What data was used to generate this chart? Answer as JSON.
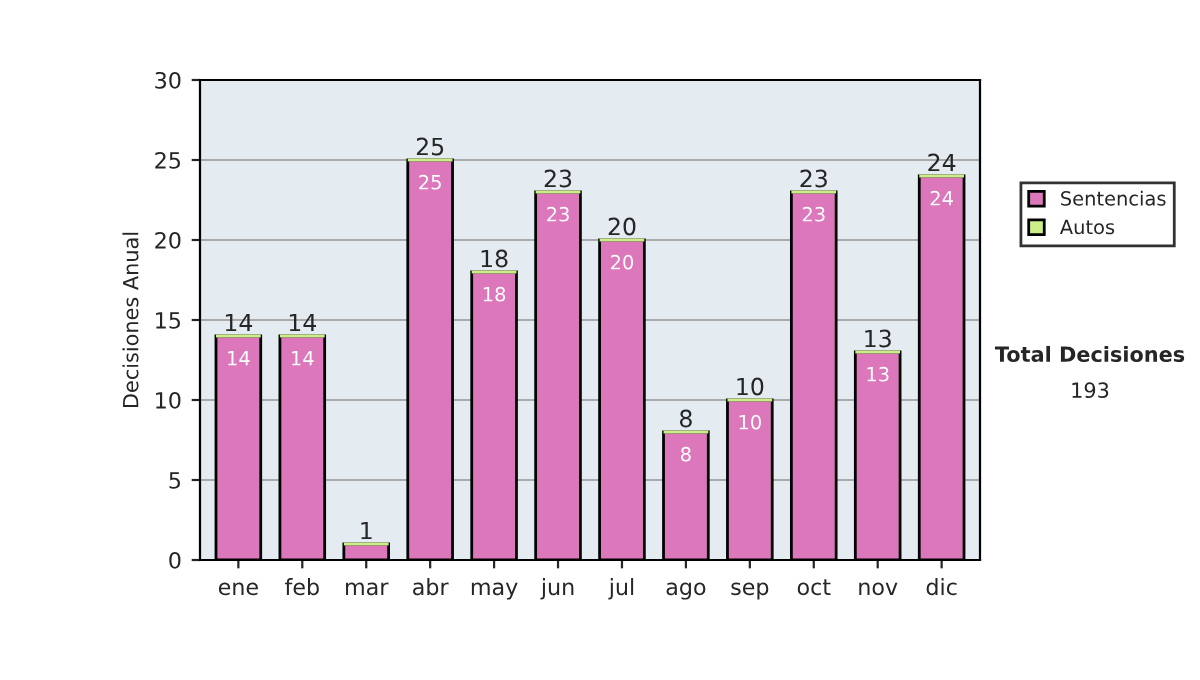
{
  "chart_data": {
    "type": "bar",
    "stacked": true,
    "ylabel": "Decisiones Anual",
    "categories": [
      "ene",
      "feb",
      "mar",
      "abr",
      "may",
      "jun",
      "jul",
      "ago",
      "sep",
      "oct",
      "nov",
      "dic"
    ],
    "series": [
      {
        "name": "Sentencias",
        "color": "#dd77bb",
        "values": [
          14,
          14,
          1,
          25,
          18,
          23,
          20,
          8,
          10,
          23,
          13,
          24
        ],
        "value_labels": [
          "14",
          "14",
          null,
          "25",
          "18",
          "23",
          "20",
          "8",
          "10",
          "23",
          "13",
          "24"
        ]
      },
      {
        "name": "Autos",
        "color": "#ccee88",
        "values": [
          0,
          0,
          0,
          0,
          0,
          0,
          0,
          0,
          0,
          0,
          0,
          0
        ]
      }
    ],
    "totals": [
      "14",
      "14",
      "1",
      "25",
      "18",
      "23",
      "20",
      "8",
      "10",
      "23",
      "13",
      "24"
    ],
    "ylim": [
      0,
      30
    ],
    "yticks": [
      0,
      5,
      10,
      15,
      20,
      25,
      30
    ],
    "grid": "y",
    "legend": "right",
    "annotations": [
      "Total Decisiones",
      "193"
    ]
  }
}
